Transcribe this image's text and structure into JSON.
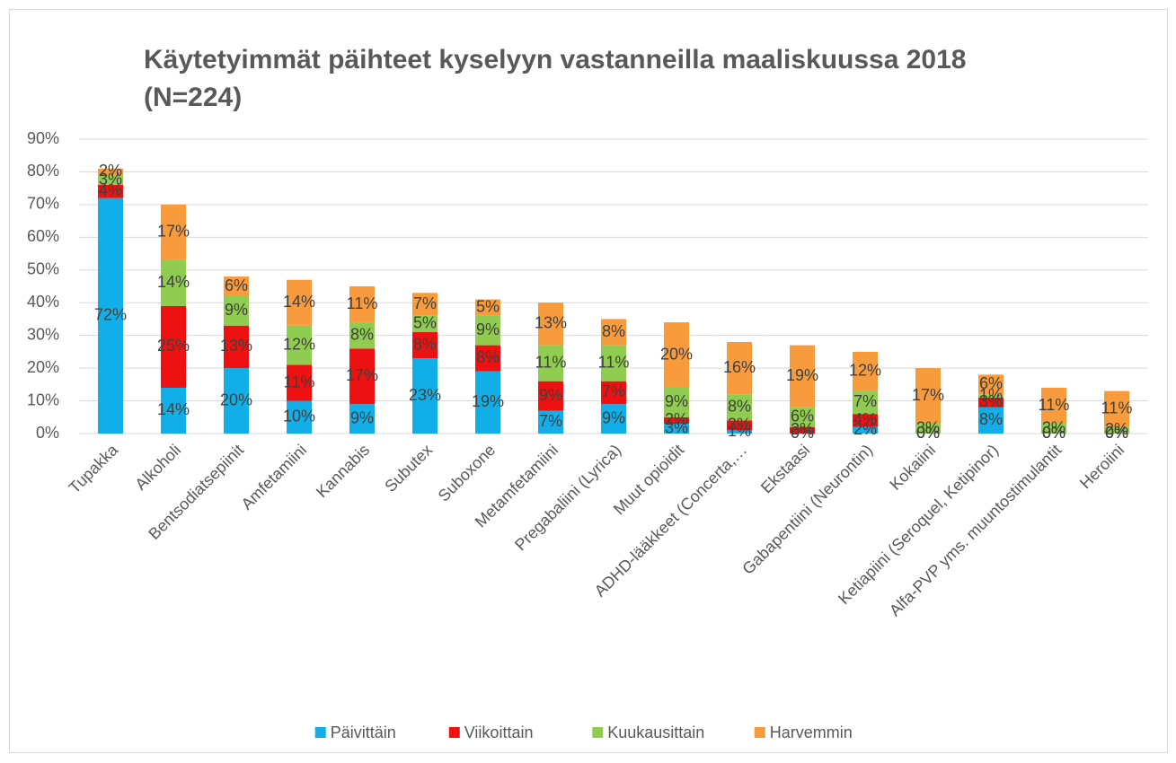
{
  "chart_data": {
    "type": "stacked_bar",
    "title": [
      "Käytetyimmät päihteet kyselyyn vastanneilla maaliskuussa 2018",
      "(N=224)"
    ],
    "categories": [
      "Tupakka",
      "Alkoholi",
      "Bentsodiatsepiinit",
      "Amfetamiini",
      "Kannabis",
      "Subutex",
      "Suboxone",
      "Metamfetamiini",
      "Pregabaliini (Lyrica)",
      "Muut opioidit",
      "ADHD-lääkkeet (Concerta,…",
      "Ekstaasi",
      "Gabapentiini (Neurontin)",
      "Kokaiini",
      "Ketiapiini (Seroquel, Ketipinor)",
      "Alfa-PVP yms. muuntostimulantit",
      "Heroiini"
    ],
    "series": [
      {
        "name": "Päivittäin",
        "color": "#12aee8",
        "values": [
          72,
          14,
          20,
          10,
          9,
          23,
          19,
          7,
          9,
          3,
          1,
          0,
          2,
          0,
          8,
          0,
          0
        ],
        "value_labels": [
          "72%",
          "14%",
          "20%",
          "10%",
          "9%",
          "23%",
          "19%",
          "7%",
          "9%",
          "3%",
          "1%",
          "0%",
          "2%",
          "0%",
          "8%",
          "0%",
          "0%"
        ]
      },
      {
        "name": "Viikoittain",
        "color": "#ee1111",
        "values": [
          4,
          25,
          13,
          11,
          17,
          8,
          8,
          9,
          7,
          2,
          3,
          2,
          4,
          0,
          3,
          0,
          0
        ],
        "value_labels": [
          "4%",
          "25%",
          "13%",
          "11%",
          "17%",
          "8%",
          "8%",
          "9%",
          "7%",
          "2%",
          "3%",
          "2%",
          "4%",
          "0%",
          "3%",
          "0%",
          "0%"
        ]
      },
      {
        "name": "Kuukausittain",
        "color": "#8fcc4f",
        "values": [
          3,
          14,
          9,
          12,
          8,
          5,
          9,
          11,
          11,
          9,
          8,
          6,
          7,
          3,
          1,
          3,
          2
        ],
        "value_labels": [
          "3%",
          "14%",
          "9%",
          "12%",
          "8%",
          "5%",
          "9%",
          "11%",
          "11%",
          "9%",
          "8%",
          "6%",
          "7%",
          "3%",
          "1%",
          "3%",
          "2%"
        ]
      },
      {
        "name": "Harvemmin",
        "color": "#f79b3d",
        "values": [
          2,
          17,
          6,
          14,
          11,
          7,
          5,
          13,
          8,
          20,
          16,
          19,
          12,
          17,
          6,
          11,
          11
        ],
        "value_labels": [
          "2%",
          "17%",
          "6%",
          "14%",
          "11%",
          "7%",
          "5%",
          "13%",
          "8%",
          "20%",
          "16%",
          "19%",
          "12%",
          "17%",
          "6%",
          "11%",
          "11%"
        ]
      }
    ],
    "ylim": [
      0,
      90
    ],
    "yticks": [
      {
        "value": 0,
        "label": "0%"
      },
      {
        "value": 10,
        "label": "10%"
      },
      {
        "value": 20,
        "label": "20%"
      },
      {
        "value": 30,
        "label": "30%"
      },
      {
        "value": 40,
        "label": "40%"
      },
      {
        "value": 50,
        "label": "50%"
      },
      {
        "value": 60,
        "label": "60%"
      },
      {
        "value": 70,
        "label": "70%"
      },
      {
        "value": 80,
        "label": "80%"
      },
      {
        "value": 90,
        "label": "90%"
      }
    ],
    "grid": true,
    "legend": "bottom"
  }
}
